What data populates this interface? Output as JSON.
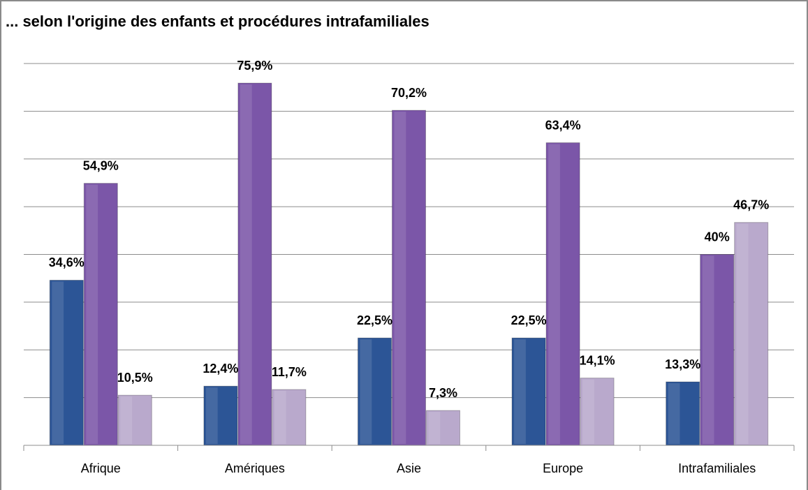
{
  "chart_data": {
    "type": "bar",
    "title": "... selon l'origine des enfants et procédures intrafamiliales",
    "categories": [
      "Afrique",
      "Amériques",
      "Asie",
      "Europe",
      "Intrafamiliales"
    ],
    "series": [
      {
        "color": "#2c5596",
        "values": [
          34.6,
          12.4,
          22.5,
          22.5,
          13.3
        ],
        "value_labels": [
          "34,6%",
          "12,4%",
          "22,5%",
          "22,5%",
          "13,3%"
        ]
      },
      {
        "color": "#7b56a8",
        "values": [
          54.9,
          75.9,
          70.2,
          63.4,
          40
        ],
        "value_labels": [
          "54,9%",
          "75,9%",
          "70,2%",
          "63,4%",
          "40%"
        ]
      },
      {
        "color": "#b9a9cc",
        "values": [
          10.5,
          11.7,
          7.3,
          14.1,
          46.7
        ],
        "value_labels": [
          "10,5%",
          "11,7%",
          "7,3%",
          "14,1%",
          "46,7%"
        ]
      }
    ],
    "ylim": [
      0,
      80
    ],
    "yticks": [
      0,
      10,
      20,
      30,
      40,
      50,
      60,
      70,
      80
    ],
    "grid": true
  }
}
